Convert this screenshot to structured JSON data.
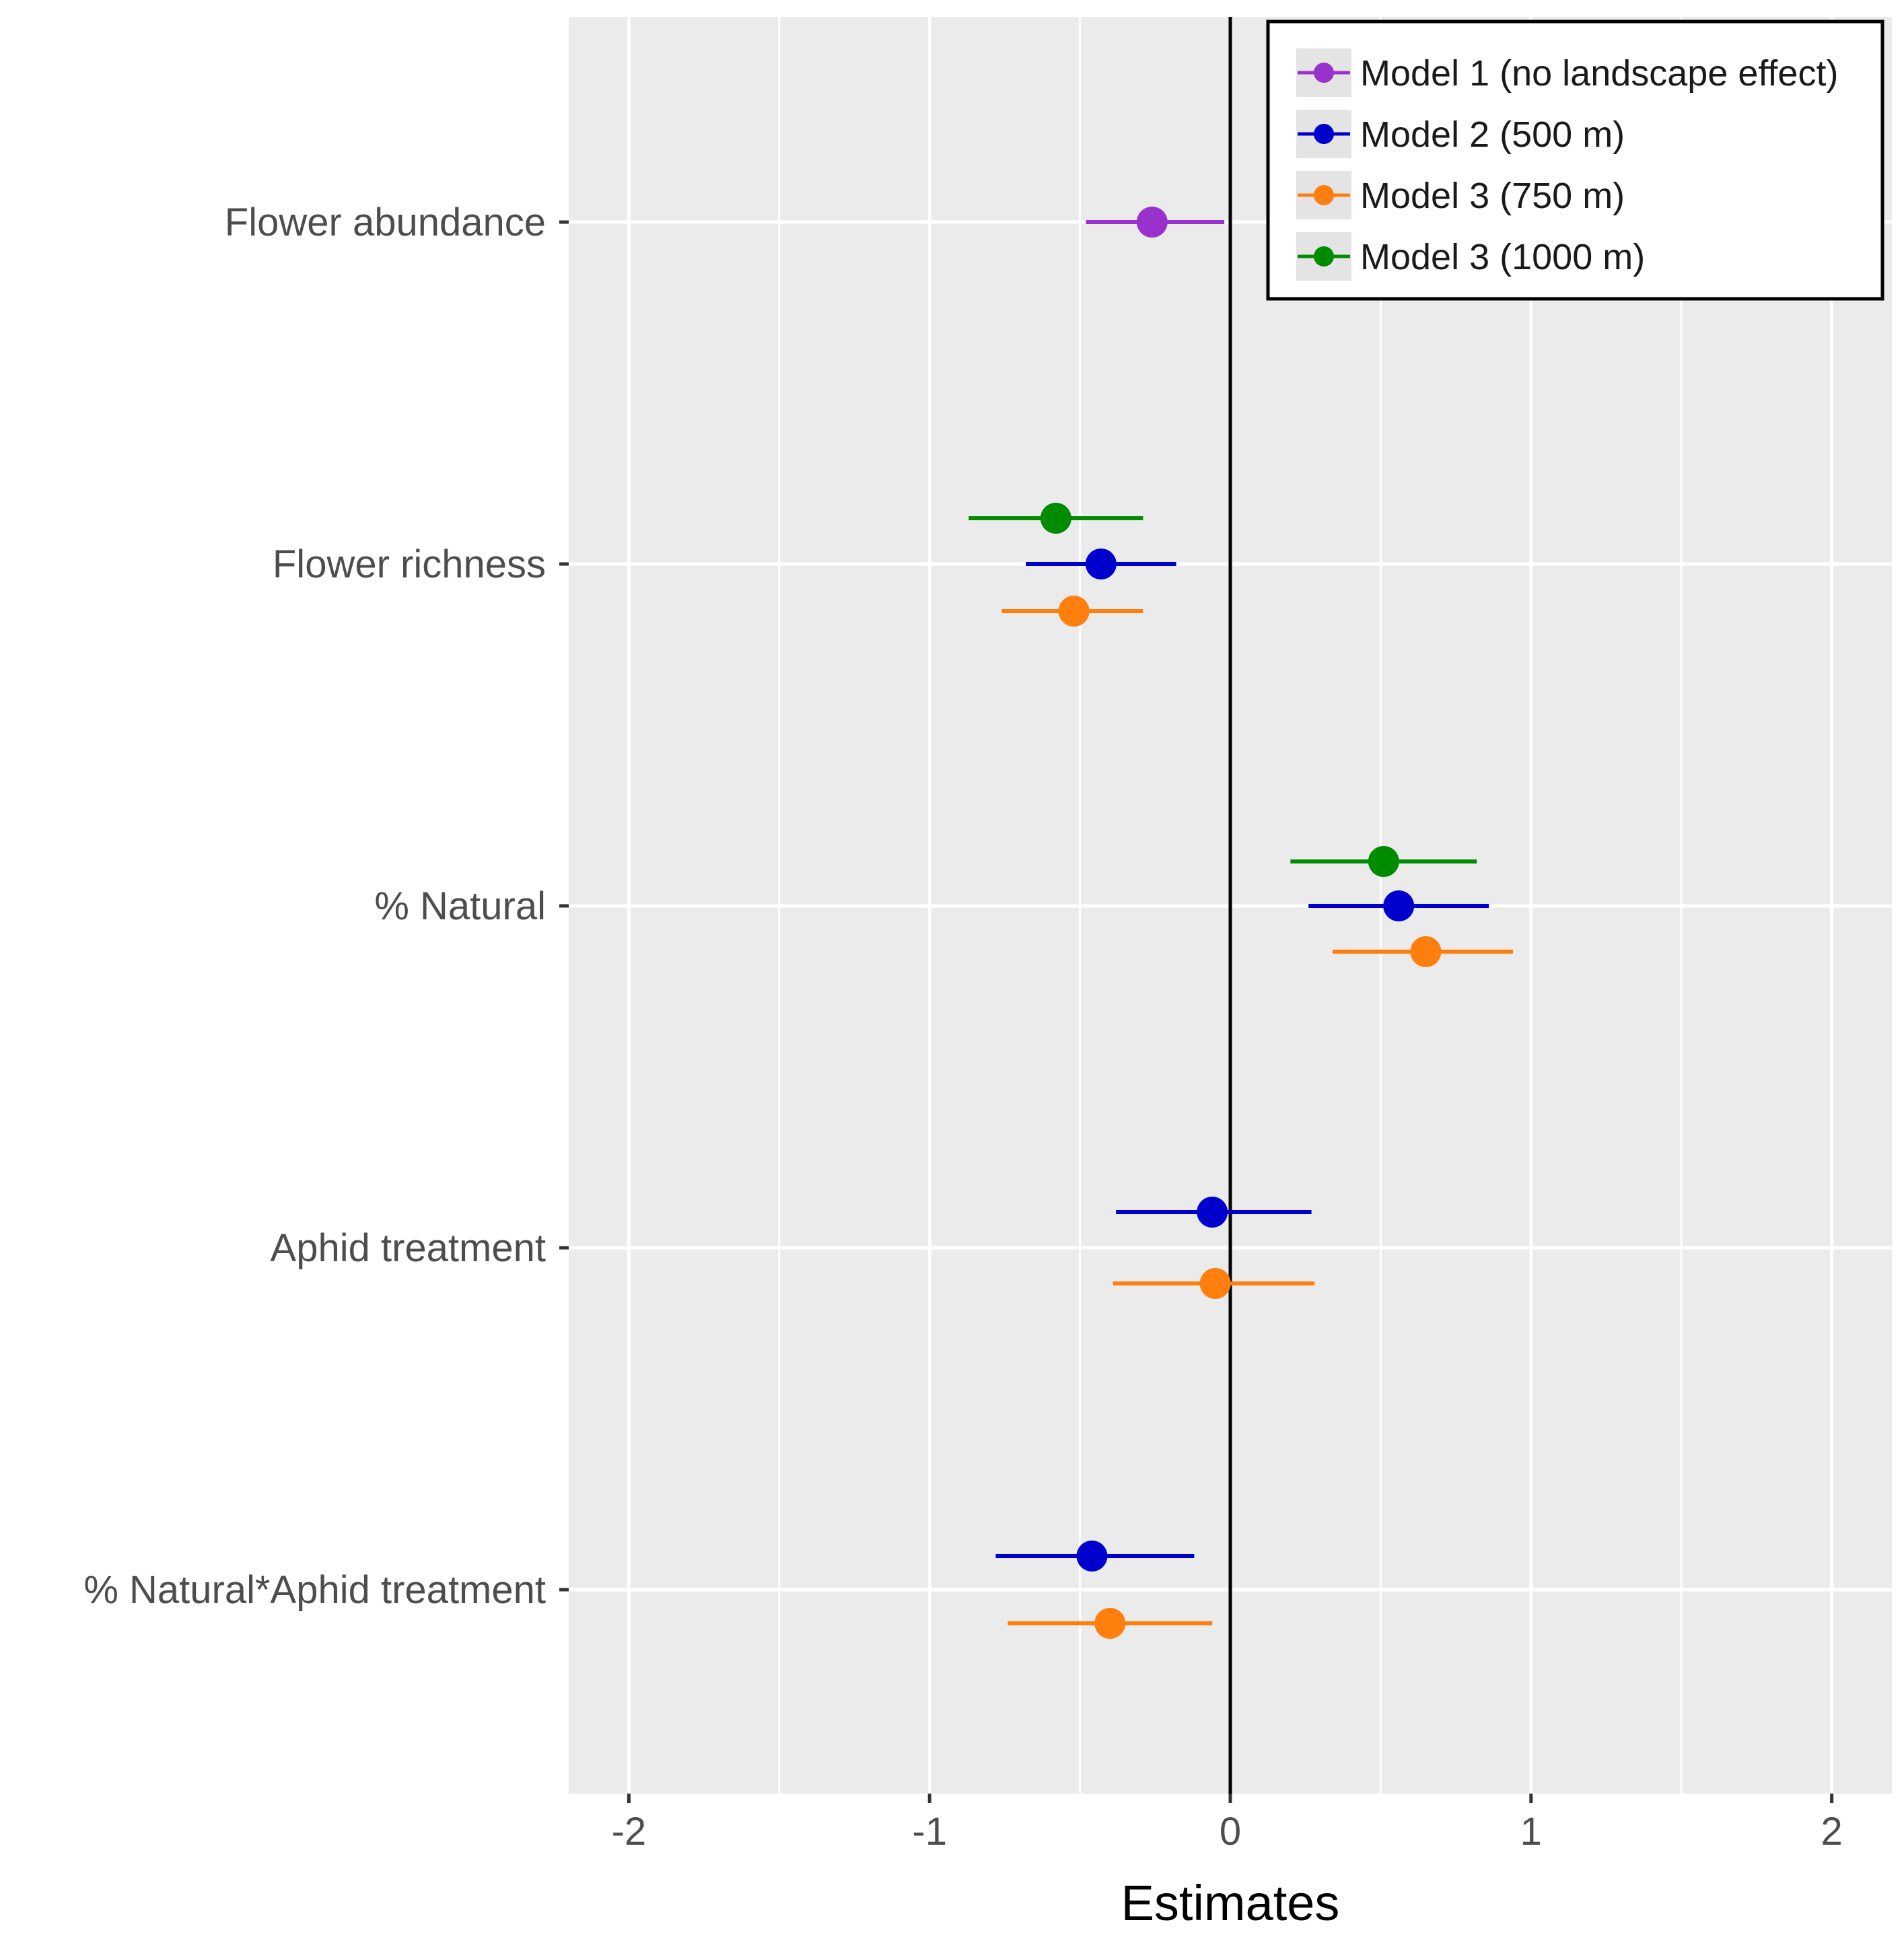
{
  "chart_data": {
    "type": "dot-whisker",
    "title": "",
    "xlabel": "Estimates",
    "ylabel": "",
    "xlim": [
      -2.2,
      2.2
    ],
    "x_ticks": [
      -2,
      -1,
      0,
      1,
      2
    ],
    "x_tick_labels": [
      "-2",
      "-1",
      "0",
      "1",
      "2"
    ],
    "grid": true,
    "reference_line": 0,
    "legend_position": "top-right",
    "terms": [
      "Flower abundance",
      "Flower richness",
      "% Natural",
      "Aphid treatment",
      "% Natural*Aphid treatment"
    ],
    "series": [
      {
        "name": "Model 1 (no landscape effect)",
        "color": "#9932cc",
        "points": [
          {
            "term": "Flower abundance",
            "estimate": -0.26,
            "lower": -0.48,
            "upper": -0.02
          }
        ]
      },
      {
        "name": "Model 2 (500 m)",
        "color": "#0000cd",
        "points": [
          {
            "term": "Flower richness",
            "estimate": -0.43,
            "lower": -0.68,
            "upper": -0.18
          },
          {
            "term": "% Natural",
            "estimate": 0.56,
            "lower": 0.26,
            "upper": 0.86
          },
          {
            "term": "Aphid treatment",
            "estimate": -0.06,
            "lower": -0.38,
            "upper": 0.27
          },
          {
            "term": "% Natural*Aphid treatment",
            "estimate": -0.46,
            "lower": -0.78,
            "upper": -0.12
          }
        ]
      },
      {
        "name": "Model 3 (750 m)",
        "color": "#ff7f0e",
        "points": [
          {
            "term": "Flower richness",
            "estimate": -0.52,
            "lower": -0.76,
            "upper": -0.29
          },
          {
            "term": "% Natural",
            "estimate": 0.65,
            "lower": 0.34,
            "upper": 0.94
          },
          {
            "term": "Aphid treatment",
            "estimate": -0.05,
            "lower": -0.39,
            "upper": 0.28
          },
          {
            "term": "% Natural*Aphid treatment",
            "estimate": -0.4,
            "lower": -0.74,
            "upper": -0.06
          }
        ]
      },
      {
        "name": "Model 3 (1000 m)",
        "color": "#008b00",
        "points": [
          {
            "term": "Flower richness",
            "estimate": -0.58,
            "lower": -0.87,
            "upper": -0.29
          },
          {
            "term": "% Natural",
            "estimate": 0.51,
            "lower": 0.2,
            "upper": 0.82
          }
        ]
      }
    ]
  }
}
